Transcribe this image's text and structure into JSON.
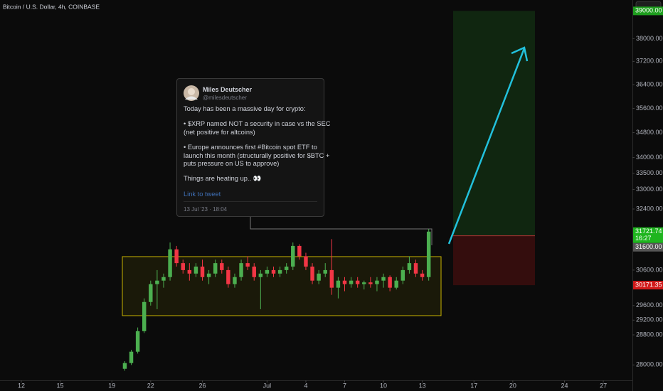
{
  "chart_data": {
    "type": "candlestick",
    "title": "Bitcoin / U.S. Dollar, 4h, COINBASE",
    "log_scale": true,
    "up_color": "#4caf50",
    "down_color": "#f23645",
    "xlim": [
      10.35,
      59.25
    ],
    "ylim": [
      27600,
      39400
    ],
    "xticks": [
      {
        "value": 12,
        "label": "12"
      },
      {
        "value": 15,
        "label": "15"
      },
      {
        "value": 19,
        "label": "19"
      },
      {
        "value": 22,
        "label": "22"
      },
      {
        "value": 26,
        "label": "26"
      },
      {
        "value": 31,
        "label": "Jul"
      },
      {
        "value": 34,
        "label": "4"
      },
      {
        "value": 37,
        "label": "7"
      },
      {
        "value": 40,
        "label": "10"
      },
      {
        "value": 43,
        "label": "13"
      },
      {
        "value": 47,
        "label": "17"
      },
      {
        "value": 50,
        "label": "20"
      },
      {
        "value": 54,
        "label": "24"
      },
      {
        "value": 57,
        "label": "27"
      }
    ],
    "yticks": [
      {
        "value": 28000,
        "label": "28000.00"
      },
      {
        "value": 28800,
        "label": "28800.00"
      },
      {
        "value": 29200,
        "label": "29200.00"
      },
      {
        "value": 29600,
        "label": "29600.00"
      },
      {
        "value": 30600,
        "label": "30600.00"
      },
      {
        "value": 32400,
        "label": "32400.00"
      },
      {
        "value": 33000,
        "label": "33000.00"
      },
      {
        "value": 33500,
        "label": "33500.00"
      },
      {
        "value": 34000,
        "label": "34000.00"
      },
      {
        "value": 34800,
        "label": "34800.00"
      },
      {
        "value": 35600,
        "label": "35600.00"
      },
      {
        "value": 36400,
        "label": "36400.00"
      },
      {
        "value": 37200,
        "label": "37200.00"
      },
      {
        "value": 38000,
        "label": "38000.00"
      }
    ],
    "candles": {
      "x": [
        20,
        20.5,
        21,
        21.5,
        22,
        22.5,
        23,
        23.5,
        24,
        24.5,
        25,
        25.5,
        26,
        26.5,
        27,
        27.5,
        28,
        28.5,
        29,
        29.5,
        30,
        30.5,
        31,
        31.5,
        32,
        32.5,
        33,
        33.5,
        34,
        34.5,
        35,
        35.5,
        36,
        36.5,
        37,
        37.5,
        38,
        38.5,
        39,
        39.5,
        40,
        40.5,
        41,
        41.5,
        42,
        42.5,
        43,
        43.5
      ],
      "open": [
        27900,
        28050,
        28350,
        28900,
        29700,
        30200,
        30300,
        30400,
        31200,
        30800,
        30600,
        30500,
        30700,
        30400,
        30500,
        30800,
        30600,
        30200,
        30400,
        30800,
        30700,
        30400,
        30500,
        30600,
        30500,
        30600,
        30700,
        31300,
        31000,
        30700,
        30300,
        30500,
        30600,
        30100,
        30300,
        30200,
        30300,
        30200,
        30250,
        30200,
        30300,
        30400,
        30100,
        30300,
        30600,
        30800,
        30500,
        30400
      ],
      "high": [
        28100,
        28400,
        29000,
        29800,
        30300,
        30600,
        30500,
        31400,
        31300,
        30900,
        30800,
        30800,
        30900,
        30600,
        30900,
        30900,
        30700,
        30500,
        30900,
        31000,
        30800,
        30600,
        30700,
        30700,
        30700,
        30800,
        31400,
        31350,
        31100,
        30800,
        30600,
        30800,
        31500,
        30400,
        30400,
        30400,
        30400,
        30300,
        30400,
        30400,
        30500,
        30450,
        30400,
        30700,
        31000,
        30900,
        30600,
        31800
      ],
      "low": [
        27850,
        28000,
        28300,
        28850,
        29600,
        29500,
        30100,
        30300,
        30700,
        30500,
        30300,
        30400,
        30300,
        30200,
        30400,
        30500,
        30100,
        30100,
        30300,
        30600,
        30300,
        29500,
        30400,
        30400,
        30400,
        30500,
        30600,
        30900,
        30600,
        30200,
        30200,
        30400,
        29900,
        29800,
        30000,
        30100,
        30100,
        30050,
        30100,
        30000,
        30100,
        30000,
        30050,
        30200,
        30500,
        30400,
        30300,
        30300
      ],
      "close": [
        28050,
        28350,
        28900,
        29700,
        30200,
        30300,
        30400,
        31200,
        30800,
        30600,
        30500,
        30700,
        30400,
        30500,
        30800,
        30600,
        30200,
        30400,
        30800,
        30700,
        30400,
        30500,
        30600,
        30500,
        30600,
        30700,
        31300,
        31000,
        30700,
        30300,
        30500,
        30600,
        30100,
        30300,
        30200,
        30300,
        30200,
        30250,
        30200,
        30300,
        30400,
        30100,
        30300,
        30600,
        30800,
        30500,
        30400,
        31721.74
      ]
    },
    "last_price": {
      "value": 31721.74,
      "label": "31721.74"
    },
    "countdown": "16:27",
    "position": {
      "target": {
        "value": 39000,
        "label": "39000.00"
      },
      "entry": {
        "value": 31600,
        "label": "31600.00"
      },
      "stop": {
        "value": 30171.35,
        "label": "30171.35"
      }
    },
    "tweet": {
      "name": "Miles Deutscher",
      "handle": "@milesdeutscher",
      "lines": [
        "Today has been a massive day for crypto:",
        "• $XRP named NOT a security in case vs the SEC",
        "(net positive for altcoins)",
        "• Europe announces first #Bitcoin  spot ETF to",
        "launch this month (structurally positive for $BTC +",
        "puts pressure on US to approve)",
        "Things are heating up.. 👀"
      ],
      "link": "Link to tweet",
      "date": "13 Jul '23 · 18:04"
    }
  }
}
